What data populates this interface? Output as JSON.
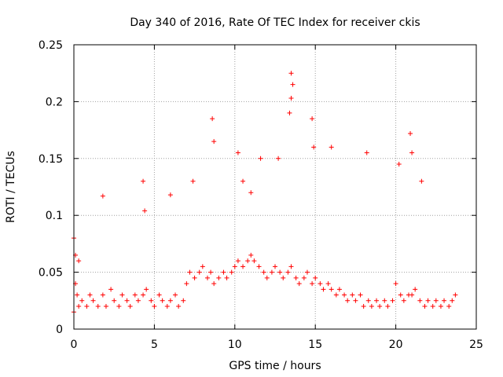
{
  "chart_data": {
    "type": "scatter",
    "title": "Day 340 of 2016, Rate Of TEC Index for receiver ckis",
    "xlabel": "GPS time / hours",
    "ylabel": "ROTI / TECUs",
    "xlim": [
      0,
      25
    ],
    "ylim": [
      0,
      0.25
    ],
    "xticks": [
      0,
      5,
      10,
      15,
      20,
      25
    ],
    "yticks": [
      0,
      0.05,
      0.1,
      0.15,
      0.2,
      0.25
    ],
    "xtick_labels": [
      "0",
      "5",
      "10",
      "15",
      "20",
      "25"
    ],
    "ytick_labels": [
      "0",
      "0.05",
      "0.1",
      "0.15",
      "0.2",
      "0.25"
    ],
    "grid": true,
    "marker": "+",
    "colors": {
      "points": "#ff0000",
      "axes": "#000000",
      "grid": "#a0a0a0"
    },
    "series": [
      {
        "x": [
          0.0,
          0.1,
          0.2,
          0.3,
          0.5,
          0.8,
          1.0,
          1.2,
          1.5,
          1.8,
          2.0,
          2.3,
          2.5,
          2.8,
          3.0,
          3.3,
          3.5,
          3.8,
          4.0,
          4.3,
          4.5,
          4.8,
          5.0,
          5.3,
          5.5,
          5.8,
          6.0,
          6.3,
          6.5,
          6.8,
          7.0,
          7.2,
          7.5,
          7.8,
          8.0,
          8.3,
          8.5,
          8.7,
          9.0,
          9.3,
          9.5,
          9.8,
          10.0,
          10.2,
          10.5,
          10.8,
          11.0,
          11.2,
          11.5,
          11.8,
          12.0,
          12.3,
          12.5,
          12.8,
          13.0,
          13.3,
          13.5,
          13.8,
          14.0,
          14.3,
          14.5,
          14.8,
          15.0,
          15.3,
          15.5,
          15.8,
          16.0,
          16.3,
          16.5,
          16.8,
          17.0,
          17.3,
          17.5,
          17.8,
          18.0,
          18.3,
          18.5,
          18.8,
          19.0,
          19.3,
          19.5,
          19.8,
          20.0,
          20.3,
          20.5,
          20.8,
          21.0,
          21.2,
          21.5,
          21.8,
          22.0,
          22.3,
          22.5,
          22.8,
          23.0,
          23.3,
          23.5,
          23.7,
          0.0,
          0.1,
          0.3,
          1.8,
          4.3,
          4.4,
          6.0,
          7.4,
          8.6,
          8.7,
          10.2,
          10.5,
          11.0,
          11.6,
          12.7,
          13.5,
          13.5,
          13.6,
          13.4,
          14.8,
          14.9,
          16.0,
          18.2,
          20.2,
          20.9,
          21.0,
          21.6
        ],
        "y": [
          0.015,
          0.04,
          0.03,
          0.02,
          0.025,
          0.02,
          0.03,
          0.025,
          0.02,
          0.03,
          0.02,
          0.035,
          0.025,
          0.02,
          0.03,
          0.025,
          0.02,
          0.03,
          0.025,
          0.03,
          0.035,
          0.025,
          0.02,
          0.03,
          0.025,
          0.02,
          0.025,
          0.03,
          0.02,
          0.025,
          0.04,
          0.05,
          0.045,
          0.05,
          0.055,
          0.045,
          0.05,
          0.04,
          0.045,
          0.05,
          0.045,
          0.05,
          0.055,
          0.06,
          0.055,
          0.06,
          0.065,
          0.06,
          0.055,
          0.05,
          0.045,
          0.05,
          0.055,
          0.05,
          0.045,
          0.05,
          0.055,
          0.045,
          0.04,
          0.045,
          0.05,
          0.04,
          0.045,
          0.04,
          0.035,
          0.04,
          0.035,
          0.03,
          0.035,
          0.03,
          0.025,
          0.03,
          0.025,
          0.03,
          0.02,
          0.025,
          0.02,
          0.025,
          0.02,
          0.025,
          0.02,
          0.025,
          0.04,
          0.03,
          0.025,
          0.03,
          0.03,
          0.035,
          0.025,
          0.02,
          0.025,
          0.02,
          0.025,
          0.02,
          0.025,
          0.02,
          0.025,
          0.03,
          0.08,
          0.065,
          0.06,
          0.117,
          0.13,
          0.104,
          0.118,
          0.13,
          0.185,
          0.165,
          0.155,
          0.13,
          0.12,
          0.15,
          0.15,
          0.225,
          0.203,
          0.215,
          0.19,
          0.185,
          0.16,
          0.16,
          0.155,
          0.145,
          0.172,
          0.155,
          0.13
        ]
      }
    ]
  }
}
